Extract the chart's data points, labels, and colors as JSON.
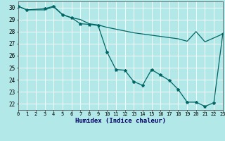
{
  "xlabel": "Humidex (Indice chaleur)",
  "background_color": "#b2e8e8",
  "line_color": "#006666",
  "grid_color": "#ffffff",
  "line1_x": [
    0,
    1,
    3,
    4,
    5,
    6,
    7,
    8,
    9,
    10,
    11,
    12,
    13,
    14,
    15,
    16,
    17,
    18,
    19,
    20,
    21,
    22,
    23
  ],
  "line1_y": [
    30.1,
    29.8,
    29.9,
    30.1,
    29.4,
    29.15,
    28.65,
    28.6,
    28.5,
    26.3,
    24.85,
    24.8,
    23.85,
    23.55,
    24.85,
    24.4,
    23.95,
    23.2,
    22.15,
    22.15,
    21.8,
    22.1,
    27.8
  ],
  "line2_x": [
    0,
    1,
    3,
    4,
    5,
    6,
    7,
    8,
    9,
    10,
    11,
    12,
    13,
    14,
    15,
    16,
    17,
    18,
    19,
    20,
    21,
    23
  ],
  "line2_y": [
    30.1,
    29.8,
    29.8,
    30.05,
    29.4,
    29.15,
    29.0,
    28.65,
    28.55,
    28.35,
    28.2,
    28.05,
    27.9,
    27.8,
    27.7,
    27.6,
    27.5,
    27.4,
    27.2,
    28.0,
    27.15,
    27.8
  ],
  "xlim": [
    0,
    23
  ],
  "ylim": [
    21.5,
    30.5
  ],
  "yticks": [
    22,
    23,
    24,
    25,
    26,
    27,
    28,
    29,
    30
  ],
  "xticks": [
    0,
    1,
    2,
    3,
    4,
    5,
    6,
    7,
    8,
    9,
    10,
    11,
    12,
    13,
    14,
    15,
    16,
    17,
    18,
    19,
    20,
    21,
    22,
    23
  ],
  "marker": "*",
  "markersize": 3,
  "linewidth": 0.9
}
